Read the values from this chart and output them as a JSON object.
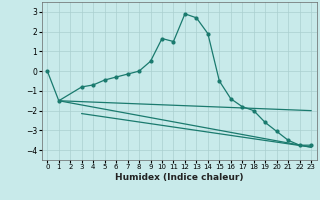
{
  "xlabel": "Humidex (Indice chaleur)",
  "background_color": "#c8eaea",
  "grid_color": "#aacfcf",
  "line_color": "#1a7a6e",
  "xlim": [
    -0.5,
    23.5
  ],
  "ylim": [
    -4.5,
    3.5
  ],
  "yticks": [
    -4,
    -3,
    -2,
    -1,
    0,
    1,
    2,
    3
  ],
  "xticks": [
    0,
    1,
    2,
    3,
    4,
    5,
    6,
    7,
    8,
    9,
    10,
    11,
    12,
    13,
    14,
    15,
    16,
    17,
    18,
    19,
    20,
    21,
    22,
    23
  ],
  "curve_x": [
    0,
    1,
    3,
    4,
    5,
    6,
    7,
    8,
    9,
    10,
    11,
    12,
    13,
    14,
    15,
    16,
    17,
    18,
    19,
    20,
    21,
    22,
    23
  ],
  "curve_y": [
    0.0,
    -1.5,
    -0.8,
    -0.7,
    -0.45,
    -0.3,
    -0.15,
    0.0,
    0.5,
    1.65,
    1.5,
    2.9,
    2.7,
    1.9,
    -0.5,
    -1.4,
    -1.8,
    -2.0,
    -2.6,
    -3.05,
    -3.5,
    -3.75,
    -3.75
  ],
  "line1_x": [
    1,
    23
  ],
  "line1_y": [
    -1.5,
    -2.0
  ],
  "line2_x": [
    3,
    23
  ],
  "line2_y": [
    -2.15,
    -3.85
  ],
  "line3_x": [
    1,
    23
  ],
  "line3_y": [
    -1.5,
    -3.85
  ]
}
